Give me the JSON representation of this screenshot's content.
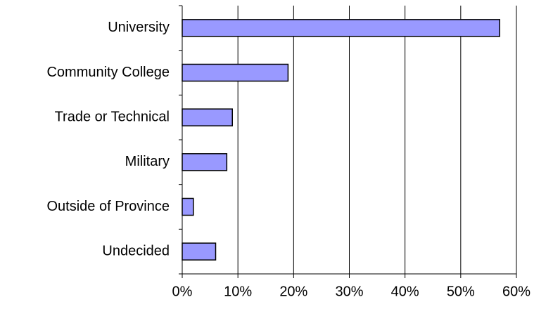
{
  "chart_data": {
    "type": "bar",
    "orientation": "horizontal",
    "categories": [
      "University",
      "Community College",
      "Trade or Technical",
      "Military",
      "Outside of Province",
      "Undecided"
    ],
    "values": [
      57,
      19,
      9,
      8,
      2,
      6
    ],
    "color": "#9999ff",
    "xlim": [
      0,
      60
    ],
    "xticks": [
      {
        "value": 0,
        "label": "0%"
      },
      {
        "value": 10,
        "label": "10%"
      },
      {
        "value": 20,
        "label": "20%"
      },
      {
        "value": 30,
        "label": "30%"
      },
      {
        "value": 40,
        "label": "40%"
      },
      {
        "value": 50,
        "label": "50%"
      },
      {
        "value": 60,
        "label": "60%"
      }
    ],
    "grid": true
  }
}
